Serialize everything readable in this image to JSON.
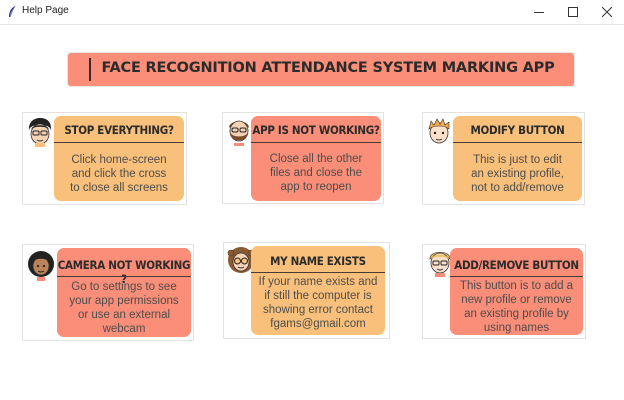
{
  "window": {
    "title": "Help Page"
  },
  "banner": {
    "title": "FACE RECOGNITION ATTENDANCE SYSTEM MARKING APP"
  },
  "cards": [
    {
      "title": "STOP EVERYTHING?",
      "body": [
        "Click home-screen",
        "and click the cross",
        "to close all screens"
      ],
      "avatar": "boy-glasses-avatar-icon",
      "color": "#f8c07a"
    },
    {
      "title": "APP IS NOT WORKING?",
      "body": [
        "Close all the other",
        "files and close the",
        "app to reopen"
      ],
      "avatar": "bearded-man-avatar-icon",
      "color": "#fa8e78"
    },
    {
      "title": "MODIFY BUTTON",
      "body": [
        "This is just to edit",
        "an existing profile,",
        "not to add/remove"
      ],
      "avatar": "ginger-boy-avatar-icon",
      "color": "#f8c07a"
    },
    {
      "title": "CAMERA NOT WORKING ?",
      "body": [
        "Go to settings to see",
        "your app permissions",
        "or use an external",
        "webcam"
      ],
      "avatar": "curly-girl-avatar-icon",
      "color": "#fa8e78"
    },
    {
      "title": "MY NAME EXISTS",
      "body": [
        "If your name exists and",
        "if still the computer is",
        "showing error contact",
        "fgams@gmail.com"
      ],
      "avatar": "curly-glasses-avatar-icon",
      "color": "#f8c07a"
    },
    {
      "title": "ADD/REMOVE BUTTON",
      "body": [
        "This button is to add a",
        "new profile or remove",
        "an existing profile by",
        "using names"
      ],
      "avatar": "blond-glasses-avatar-icon",
      "color": "#fa8e78"
    }
  ]
}
